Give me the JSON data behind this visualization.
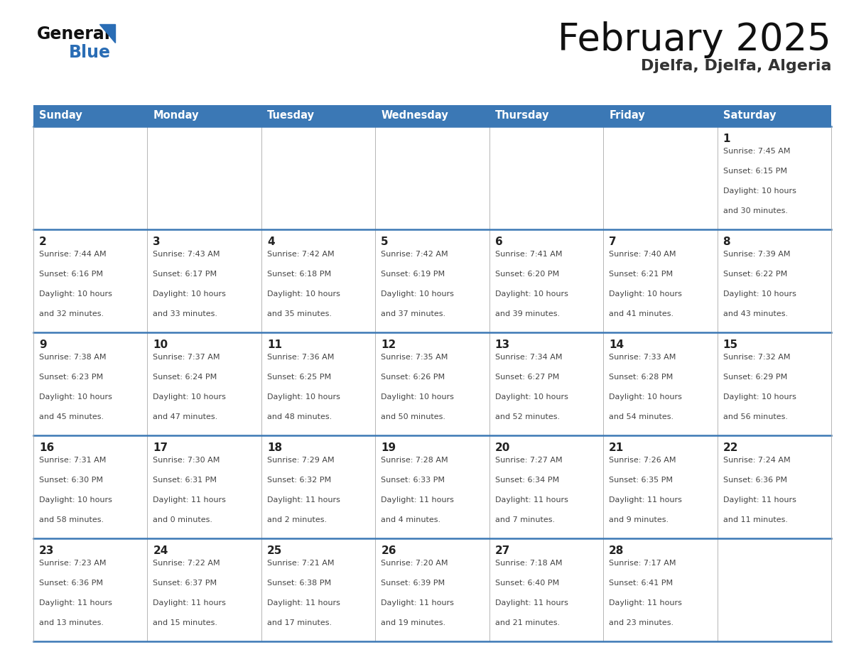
{
  "title": "February 2025",
  "subtitle": "Djelfa, Djelfa, Algeria",
  "header_bg": "#3b78b5",
  "header_text_color": "#ffffff",
  "day_names": [
    "Sunday",
    "Monday",
    "Tuesday",
    "Wednesday",
    "Thursday",
    "Friday",
    "Saturday"
  ],
  "cell_bg": "#ffffff",
  "divider_color": "#3b78b5",
  "border_color": "#aaaaaa",
  "number_color": "#222222",
  "text_color": "#444444",
  "calendar": [
    [
      null,
      null,
      null,
      null,
      null,
      null,
      {
        "day": 1,
        "sunrise": "7:45 AM",
        "sunset": "6:15 PM",
        "daylight": "10 hours\nand 30 minutes."
      }
    ],
    [
      {
        "day": 2,
        "sunrise": "7:44 AM",
        "sunset": "6:16 PM",
        "daylight": "10 hours\nand 32 minutes."
      },
      {
        "day": 3,
        "sunrise": "7:43 AM",
        "sunset": "6:17 PM",
        "daylight": "10 hours\nand 33 minutes."
      },
      {
        "day": 4,
        "sunrise": "7:42 AM",
        "sunset": "6:18 PM",
        "daylight": "10 hours\nand 35 minutes."
      },
      {
        "day": 5,
        "sunrise": "7:42 AM",
        "sunset": "6:19 PM",
        "daylight": "10 hours\nand 37 minutes."
      },
      {
        "day": 6,
        "sunrise": "7:41 AM",
        "sunset": "6:20 PM",
        "daylight": "10 hours\nand 39 minutes."
      },
      {
        "day": 7,
        "sunrise": "7:40 AM",
        "sunset": "6:21 PM",
        "daylight": "10 hours\nand 41 minutes."
      },
      {
        "day": 8,
        "sunrise": "7:39 AM",
        "sunset": "6:22 PM",
        "daylight": "10 hours\nand 43 minutes."
      }
    ],
    [
      {
        "day": 9,
        "sunrise": "7:38 AM",
        "sunset": "6:23 PM",
        "daylight": "10 hours\nand 45 minutes."
      },
      {
        "day": 10,
        "sunrise": "7:37 AM",
        "sunset": "6:24 PM",
        "daylight": "10 hours\nand 47 minutes."
      },
      {
        "day": 11,
        "sunrise": "7:36 AM",
        "sunset": "6:25 PM",
        "daylight": "10 hours\nand 48 minutes."
      },
      {
        "day": 12,
        "sunrise": "7:35 AM",
        "sunset": "6:26 PM",
        "daylight": "10 hours\nand 50 minutes."
      },
      {
        "day": 13,
        "sunrise": "7:34 AM",
        "sunset": "6:27 PM",
        "daylight": "10 hours\nand 52 minutes."
      },
      {
        "day": 14,
        "sunrise": "7:33 AM",
        "sunset": "6:28 PM",
        "daylight": "10 hours\nand 54 minutes."
      },
      {
        "day": 15,
        "sunrise": "7:32 AM",
        "sunset": "6:29 PM",
        "daylight": "10 hours\nand 56 minutes."
      }
    ],
    [
      {
        "day": 16,
        "sunrise": "7:31 AM",
        "sunset": "6:30 PM",
        "daylight": "10 hours\nand 58 minutes."
      },
      {
        "day": 17,
        "sunrise": "7:30 AM",
        "sunset": "6:31 PM",
        "daylight": "11 hours\nand 0 minutes."
      },
      {
        "day": 18,
        "sunrise": "7:29 AM",
        "sunset": "6:32 PM",
        "daylight": "11 hours\nand 2 minutes."
      },
      {
        "day": 19,
        "sunrise": "7:28 AM",
        "sunset": "6:33 PM",
        "daylight": "11 hours\nand 4 minutes."
      },
      {
        "day": 20,
        "sunrise": "7:27 AM",
        "sunset": "6:34 PM",
        "daylight": "11 hours\nand 7 minutes."
      },
      {
        "day": 21,
        "sunrise": "7:26 AM",
        "sunset": "6:35 PM",
        "daylight": "11 hours\nand 9 minutes."
      },
      {
        "day": 22,
        "sunrise": "7:24 AM",
        "sunset": "6:36 PM",
        "daylight": "11 hours\nand 11 minutes."
      }
    ],
    [
      {
        "day": 23,
        "sunrise": "7:23 AM",
        "sunset": "6:36 PM",
        "daylight": "11 hours\nand 13 minutes."
      },
      {
        "day": 24,
        "sunrise": "7:22 AM",
        "sunset": "6:37 PM",
        "daylight": "11 hours\nand 15 minutes."
      },
      {
        "day": 25,
        "sunrise": "7:21 AM",
        "sunset": "6:38 PM",
        "daylight": "11 hours\nand 17 minutes."
      },
      {
        "day": 26,
        "sunrise": "7:20 AM",
        "sunset": "6:39 PM",
        "daylight": "11 hours\nand 19 minutes."
      },
      {
        "day": 27,
        "sunrise": "7:18 AM",
        "sunset": "6:40 PM",
        "daylight": "11 hours\nand 21 minutes."
      },
      {
        "day": 28,
        "sunrise": "7:17 AM",
        "sunset": "6:41 PM",
        "daylight": "11 hours\nand 23 minutes."
      },
      null
    ]
  ],
  "logo_general_color": "#111111",
  "logo_blue_color": "#2a6db5",
  "figsize": [
    11.88,
    9.18
  ],
  "dpi": 100
}
